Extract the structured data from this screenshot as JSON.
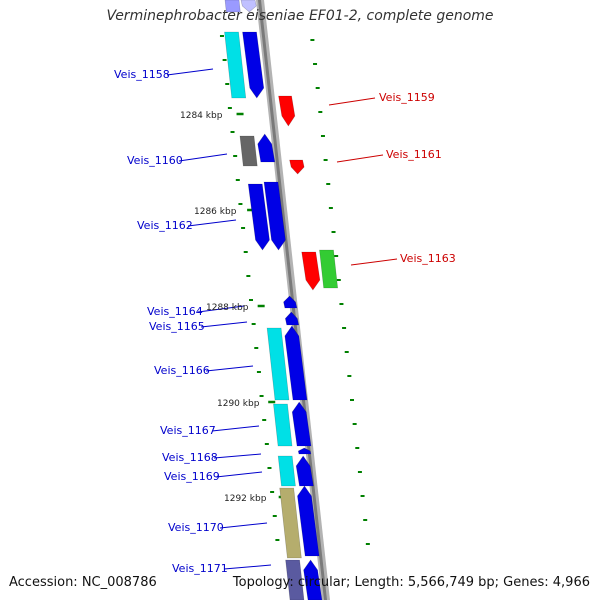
{
  "title": "Verminephrobacter eiseniae EF01-2, complete genome",
  "accession": "Accession: NC_008786",
  "summary": "Topology: circular; Length: 5,566,749 bp; Genes: 4,966",
  "colors": {
    "backbone": "#8c8c8c",
    "forward_blue": "#0000e6",
    "forward_cyan": "#00e0e6",
    "reverse_red": "#ff0000",
    "reverse_green": "#33cc33",
    "tick_green": "#008000",
    "label_blue": "#0000cc",
    "label_red": "#cc0000",
    "gray_feature": "#666666",
    "khaki_feature": "#b5ad6d"
  },
  "kbp_marks": [
    "1284 kbp",
    "1286 kbp",
    "1288 kbp",
    "1290 kbp",
    "1292 kbp"
  ],
  "gene_labels": [
    {
      "text": "Veis_1158",
      "strand": "forward"
    },
    {
      "text": "Veis_1159",
      "strand": "reverse"
    },
    {
      "text": "Veis_1160",
      "strand": "forward"
    },
    {
      "text": "Veis_1161",
      "strand": "reverse"
    },
    {
      "text": "Veis_1162",
      "strand": "forward"
    },
    {
      "text": "Veis_1163",
      "strand": "reverse"
    },
    {
      "text": "Veis_1164",
      "strand": "forward"
    },
    {
      "text": "Veis_1165",
      "strand": "forward"
    },
    {
      "text": "Veis_1166",
      "strand": "forward"
    },
    {
      "text": "Veis_1167",
      "strand": "forward"
    },
    {
      "text": "Veis_1168",
      "strand": "forward"
    },
    {
      "text": "Veis_1169",
      "strand": "forward"
    },
    {
      "text": "Veis_1170",
      "strand": "forward"
    },
    {
      "text": "Veis_1171",
      "strand": "forward"
    }
  ]
}
